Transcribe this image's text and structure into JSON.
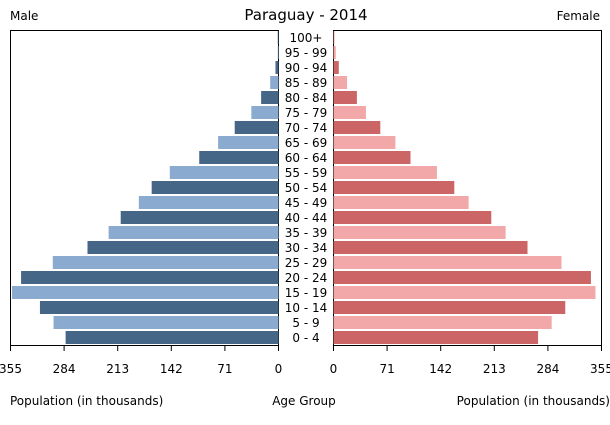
{
  "chart_data": {
    "type": "bar",
    "subtype": "population-pyramid",
    "title": "Paraguay - 2014",
    "left_label": "Male",
    "right_label": "Female",
    "xlabel_left": "Population (in thousands)",
    "xlabel_center": "Age Group",
    "xlabel_right": "Population (in thousands)",
    "xlim": [
      0,
      355
    ],
    "ticks": [
      0,
      71,
      142,
      213,
      284,
      355
    ],
    "tick_labels": [
      "0",
      "71",
      "142",
      "213",
      "284",
      "355"
    ],
    "categories": [
      "0 - 4",
      "5 - 9",
      "10 - 14",
      "15 - 19",
      "20 - 24",
      "25 - 29",
      "30 - 34",
      "35 - 39",
      "40 - 44",
      "45 - 49",
      "50 - 54",
      "55 - 59",
      "60 - 64",
      "65 - 69",
      "70 - 74",
      "75 - 79",
      "80 - 84",
      "85 - 89",
      "90 - 94",
      "95 - 99",
      "100+"
    ],
    "series": [
      {
        "name": "Male",
        "colors": [
          "#466688",
          "#8aaad0"
        ],
        "values": [
          282,
          298,
          316,
          353,
          341,
          299,
          253,
          225,
          209,
          185,
          168,
          144,
          105,
          80,
          58,
          36,
          23,
          11,
          4,
          1,
          1
        ]
      },
      {
        "name": "Female",
        "colors": [
          "#cc6666",
          "#f2a8a8"
        ],
        "values": [
          271,
          289,
          307,
          347,
          341,
          302,
          257,
          228,
          209,
          179,
          160,
          137,
          102,
          82,
          62,
          43,
          31,
          18,
          7,
          3,
          1
        ]
      }
    ]
  }
}
